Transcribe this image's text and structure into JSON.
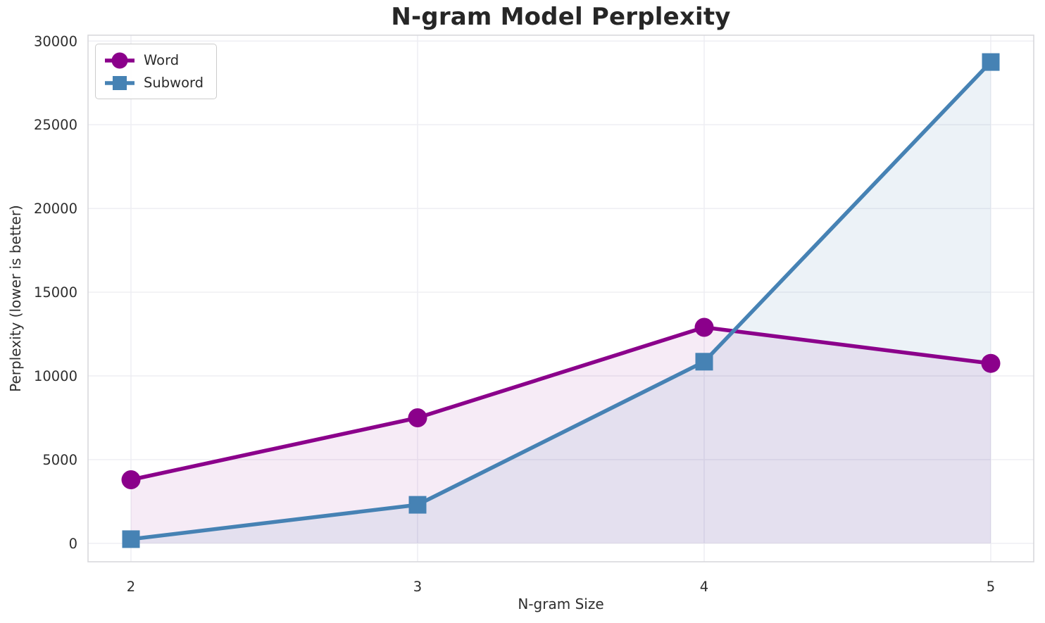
{
  "figure": {
    "background": "#ffffff"
  },
  "chart_data": {
    "type": "line",
    "title": "N-gram Model Perplexity",
    "xlabel": "N-gram Size",
    "ylabel": "Perplexity (lower is better)",
    "x": [
      2,
      3,
      4,
      5
    ],
    "xtick_labels": [
      "2",
      "3",
      "4",
      "5"
    ],
    "yticks": [
      0,
      5000,
      10000,
      15000,
      20000,
      25000,
      30000
    ],
    "ytick_labels": [
      "0",
      "5000",
      "10000",
      "15000",
      "20000",
      "25000",
      "30000"
    ],
    "xlim": [
      1.85,
      5.15
    ],
    "ylim": [
      -1100,
      30350
    ],
    "grid": true,
    "legend_position": "upper-left",
    "fill_baseline": 0,
    "series": [
      {
        "name": "Word",
        "marker": "circle",
        "color": "#8B008B",
        "fill_alpha": 0.08,
        "values": [
          3800,
          7500,
          12900,
          10750
        ]
      },
      {
        "name": "Subword",
        "marker": "square",
        "color": "#4682B4",
        "fill_alpha": 0.1,
        "values": [
          250,
          2300,
          10850,
          28750
        ]
      }
    ],
    "style": {
      "grid_color": "#ededf2",
      "spine_color": "#d8d8dc",
      "tick_label_color": "#2e2e2e",
      "title_color": "#262626"
    }
  }
}
